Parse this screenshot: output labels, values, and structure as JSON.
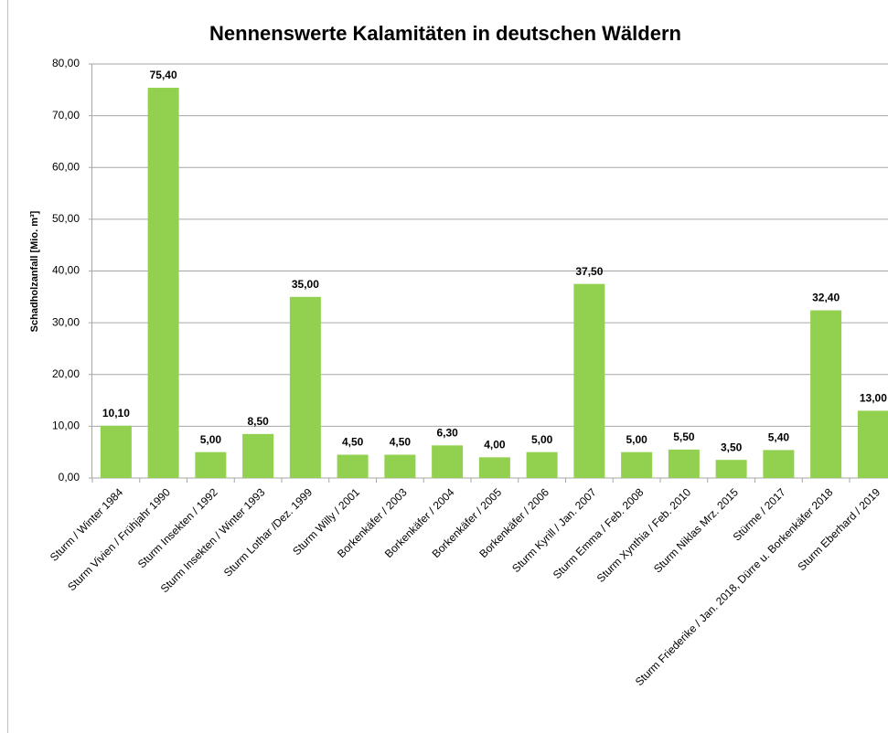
{
  "chart_data": {
    "type": "bar",
    "title": "Nennenswerte Kalamitäten in deutschen Wäldern",
    "y_label": "Schadholzanfall  [Mio. m³]",
    "categories": [
      "Sturm / Winter 1984",
      "Sturm Vivien / Frühjahr 1990",
      "Sturm Insekten / 1992",
      "Sturm Insekten / Winter 1993",
      "Sturm Lothar /Dez. 1999",
      "Sturm Willy / 2001",
      "Borkenkäfer / 2003",
      "Borkenkäfer / 2004",
      "Borkenkäfer / 2005",
      "Borkenkäfer / 2006",
      "Sturm Kyrill / Jan. 2007",
      "Sturm Emma / Feb. 2008",
      "Sturm Xynthia / Feb. 2010",
      "Sturm Niklas Mrz. 2015",
      "Stürme / 2017",
      "Sturm Friederike / Jan. 2018, Dürre u. Borkenkäfer 2018",
      "Sturm Eberhard / 2019"
    ],
    "values": [
      10.1,
      75.4,
      5.0,
      8.5,
      35.0,
      4.5,
      4.5,
      6.3,
      4.0,
      5.0,
      37.5,
      5.0,
      5.5,
      3.5,
      5.4,
      32.4,
      13.0
    ],
    "value_labels": [
      "10,10",
      "75,40",
      "5,00",
      "8,50",
      "35,00",
      "4,50",
      "4,50",
      "6,30",
      "4,00",
      "5,00",
      "37,50",
      "5,00",
      "5,50",
      "3,50",
      "5,40",
      "32,40",
      "13,00"
    ],
    "color": "#92d050",
    "ylim": [
      0,
      80
    ],
    "yticks": [
      {
        "value": 0,
        "label": "0,00"
      },
      {
        "value": 10,
        "label": "10,00"
      },
      {
        "value": 20,
        "label": "20,00"
      },
      {
        "value": 30,
        "label": "30,00"
      },
      {
        "value": 40,
        "label": "40,00"
      },
      {
        "value": 50,
        "label": "50,00"
      },
      {
        "value": 60,
        "label": "60,00"
      },
      {
        "value": 70,
        "label": "70,00"
      },
      {
        "value": 80,
        "label": "80,00"
      }
    ],
    "grid": true
  }
}
